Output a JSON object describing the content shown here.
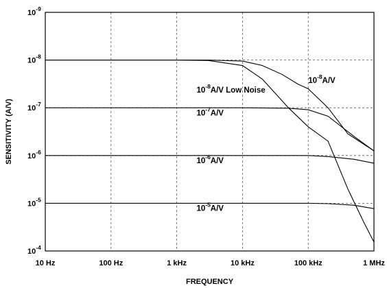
{
  "chart_data": {
    "type": "line",
    "title": "",
    "xlabel": "FREQUENCY",
    "ylabel": "SENSITIVITY (A/V)",
    "x_scale": "log",
    "y_scale": "log",
    "y_axis_inverted": true,
    "xlim": [
      10,
      1000000
    ],
    "ylim": [
      1e-09,
      0.0001
    ],
    "grid": true,
    "x_ticks": [
      {
        "value": 10,
        "label": "10 Hz"
      },
      {
        "value": 100,
        "label": "100 Hz"
      },
      {
        "value": 1000,
        "label": "1 kHz"
      },
      {
        "value": 10000,
        "label": "10 kHz"
      },
      {
        "value": 100000,
        "label": "100 kHz"
      },
      {
        "value": 1000000,
        "label": "1 MHz"
      }
    ],
    "y_ticks": [
      {
        "value": 1e-09,
        "base": "10",
        "exp": "-9"
      },
      {
        "value": 1e-08,
        "base": "10",
        "exp": "-8"
      },
      {
        "value": 1e-07,
        "base": "10",
        "exp": "-7"
      },
      {
        "value": 1e-06,
        "base": "10",
        "exp": "-6"
      },
      {
        "value": 1e-05,
        "base": "10",
        "exp": "-5"
      },
      {
        "value": 0.0001,
        "base": "10",
        "exp": "-4"
      }
    ],
    "series": [
      {
        "points": [
          [
            10,
            1e-08
          ],
          [
            1000,
            1e-08
          ],
          [
            3000,
            1e-08
          ],
          [
            10000,
            1.05e-08
          ],
          [
            20000,
            1.3e-08
          ],
          [
            40000,
            2e-08
          ],
          [
            70000,
            3.2e-08
          ],
          [
            100000,
            4e-08
          ],
          [
            200000,
            1e-07
          ],
          [
            400000,
            3.5e-07
          ],
          [
            1000000,
            8e-07
          ]
        ]
      },
      {
        "points": [
          [
            10,
            1e-08
          ],
          [
            1000,
            1e-08
          ],
          [
            3000,
            1.02e-08
          ],
          [
            10000,
            1.3e-08
          ],
          [
            20000,
            2.5e-08
          ],
          [
            50000,
            1e-07
          ],
          [
            100000,
            2.5e-07
          ],
          [
            200000,
            5e-07
          ],
          [
            400000,
            5e-06
          ],
          [
            700000,
            2.5e-05
          ],
          [
            1000000,
            6.5e-05
          ]
        ]
      },
      {
        "points": [
          [
            10,
            1e-07
          ],
          [
            10000,
            1e-07
          ],
          [
            50000,
            1.02e-07
          ],
          [
            100000,
            1.1e-07
          ],
          [
            200000,
            1.5e-07
          ],
          [
            500000,
            4e-07
          ],
          [
            1000000,
            8e-07
          ]
        ]
      },
      {
        "points": [
          [
            10,
            1e-06
          ],
          [
            100000,
            1e-06
          ],
          [
            200000,
            1.05e-06
          ],
          [
            500000,
            1.2e-06
          ],
          [
            1000000,
            1.45e-06
          ]
        ]
      },
      {
        "points": [
          [
            10,
            1e-05
          ],
          [
            100000,
            1e-05
          ],
          [
            200000,
            1.02e-05
          ],
          [
            500000,
            1.1e-05
          ],
          [
            1000000,
            1.3e-05
          ]
        ]
      }
    ],
    "annotations": [
      {
        "pre": "10",
        "exp": "-8",
        "post": "A/V",
        "x": 100000,
        "y": 3e-08
      },
      {
        "pre": "10",
        "exp": "-8",
        "post": "A/V Low Noise",
        "x": 2000,
        "y": 4.8e-08
      },
      {
        "pre": "10",
        "exp": "-7",
        "post": "A/V",
        "x": 2000,
        "y": 1.45e-07
      },
      {
        "pre": "10",
        "exp": "-6",
        "post": "A/V",
        "x": 2000,
        "y": 1.45e-06
      },
      {
        "pre": "10",
        "exp": "-5",
        "post": "A/V",
        "x": 2000,
        "y": 1.45e-05
      }
    ]
  }
}
